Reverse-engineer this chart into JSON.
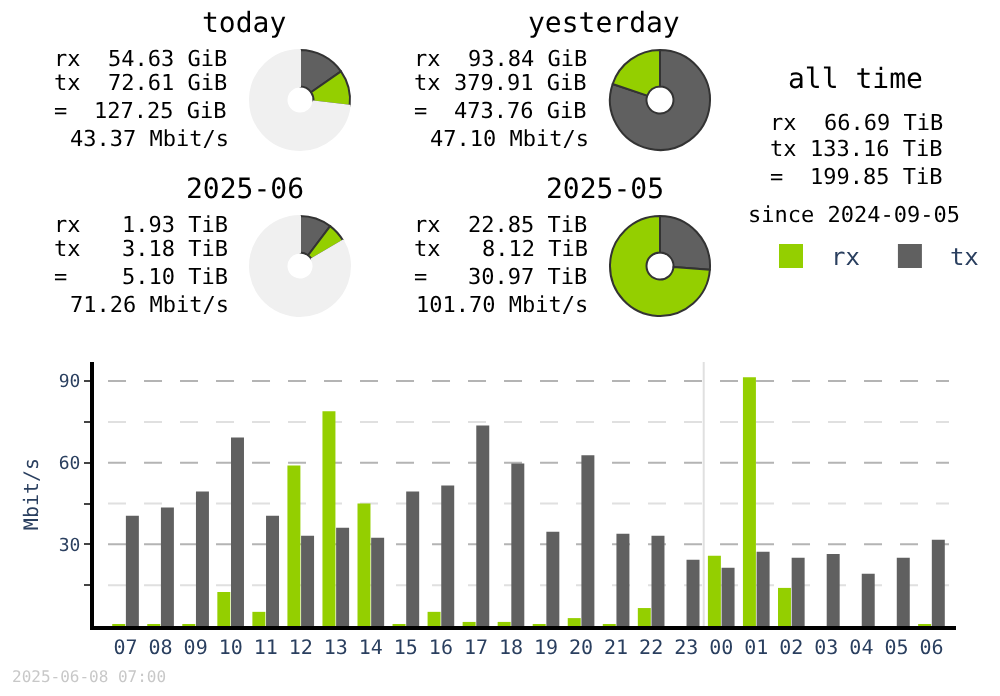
{
  "chart_data": [
    {
      "type": "donut",
      "title": "today",
      "categories": [
        null,
        null,
        null
      ],
      "values": [
        15.3,
        11.5,
        73.2
      ],
      "colors": [
        "#606060",
        "#94cf00",
        "#f0f0f0"
      ],
      "annotations": [
        "rx",
        "54.63 GiB",
        "tx",
        "72.61 GiB",
        "=",
        "127.25 GiB",
        "43.37 Mbit/s"
      ]
    },
    {
      "type": "donut",
      "title": "yesterday",
      "categories": [
        null,
        null
      ],
      "values": [
        80.2,
        19.8
      ],
      "colors": [
        "#606060",
        "#94cf00"
      ],
      "annotations": [
        "rx",
        "93.84 GiB",
        "tx",
        "379.91 GiB",
        "=",
        "473.76 GiB",
        "47.10 Mbit/s"
      ]
    },
    {
      "type": "other",
      "title": "all time",
      "annotations": [
        "rx",
        "66.69 TiB",
        "tx",
        "133.16 TiB",
        "=",
        "199.85 TiB",
        "since 2024-09-05"
      ]
    },
    {
      "type": "donut",
      "title": "2025-06",
      "categories": [
        null,
        null,
        null
      ],
      "values": [
        10.3,
        6.2,
        83.5
      ],
      "colors": [
        "#606060",
        "#94cf00",
        "#f0f0f0"
      ],
      "annotations": [
        "rx",
        "1.93 TiB",
        "tx",
        "3.18 TiB",
        "=",
        "5.10 TiB",
        "71.26 Mbit/s"
      ]
    },
    {
      "type": "donut",
      "title": "2025-05",
      "categories": [
        null,
        null
      ],
      "values": [
        26.2,
        73.8
      ],
      "colors": [
        "#606060",
        "#94cf00"
      ],
      "annotations": [
        "rx",
        "22.85 TiB",
        "tx",
        "8.12 TiB",
        "=",
        "30.97 TiB",
        "101.70 Mbit/s"
      ]
    },
    {
      "type": "bar",
      "ylabel": "Mbit/s",
      "categories": [
        "07",
        "08",
        "09",
        "10",
        "11",
        "12",
        "13",
        "14",
        "15",
        "16",
        "17",
        "18",
        "19",
        "20",
        "21",
        "22",
        "23",
        "00",
        "01",
        "02",
        "03",
        "04",
        "05",
        "06"
      ],
      "series": [
        {
          "name": "rx",
          "color": "#94cf00",
          "values": [
            0.7,
            0.7,
            0.7,
            12.5,
            5.2,
            59,
            78.9,
            45,
            0.7,
            5.2,
            1.5,
            1.5,
            0.7,
            2.9,
            0.7,
            6.6,
            0,
            25.8,
            91.4,
            14,
            0,
            0,
            0,
            0.7
          ]
        },
        {
          "name": "tx",
          "color": "#606060",
          "values": [
            40.5,
            43.5,
            49.4,
            69.3,
            40.5,
            33.2,
            36.1,
            32.4,
            49.4,
            51.6,
            73.7,
            59.7,
            34.6,
            62.7,
            33.9,
            33.2,
            24.3,
            21.4,
            27.3,
            25.1,
            26.5,
            19.2,
            25.1,
            31.7
          ]
        }
      ],
      "ylim": [
        0,
        97
      ],
      "yticks": [
        {
          "value": 15,
          "label": null
        },
        30,
        {
          "value": 45,
          "label": null
        },
        60,
        {
          "value": 75,
          "label": null
        },
        90
      ],
      "grid": "y",
      "legend": "top right",
      "ref_lines": [
        {
          "axis": "x",
          "value": "00",
          "color": "#e0e0e0"
        }
      ],
      "annotations": [
        "2025-06-08 07:00"
      ]
    }
  ]
}
